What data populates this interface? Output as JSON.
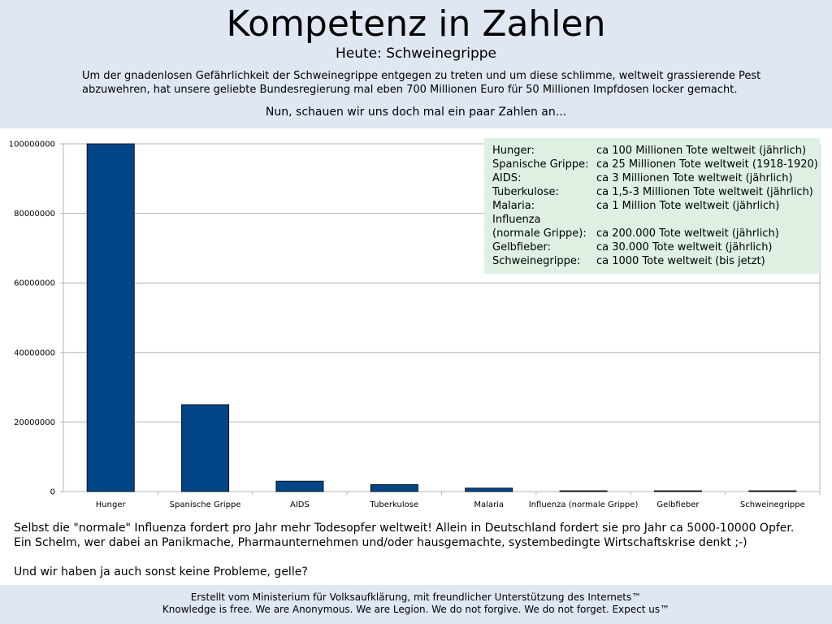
{
  "header": {
    "title": "Kompetenz in Zahlen",
    "subtitle": "Heute: Schweinegrippe",
    "intro": "Um der gnadenlosen Gefährlichkeit der Schweinegrippe entgegen zu treten und um diese schlimme, weltweit grassierende Pest abzuwehren, hat unsere geliebte Bundesregierung mal eben 700 Millionen Euro für 50 Millionen Impfdosen locker gemacht.",
    "lead": "Nun, schauen wir uns doch mal ein paar Zahlen an..."
  },
  "chart_data": {
    "type": "bar",
    "categories": [
      "Hunger",
      "Spanische Grippe",
      "AIDS",
      "Tuberkulose",
      "Malaria",
      "Influenza (normale Grippe)",
      "Gelbfieber",
      "Schweinegrippe"
    ],
    "values": [
      100000000,
      25000000,
      3000000,
      2000000,
      1000000,
      200000,
      30000,
      1000
    ],
    "ylim": [
      0,
      100000000
    ],
    "yticks": [
      "0",
      "20000000",
      "40000000",
      "60000000",
      "80000000",
      "100000000"
    ],
    "grid": true,
    "bar_color": "#004586",
    "title": "",
    "xlabel": "",
    "ylabel": ""
  },
  "infobox": {
    "rows": [
      {
        "label": "Hunger:",
        "value": "ca 100 Millionen Tote weltweit (jährlich)"
      },
      {
        "label": "Spanische Grippe:",
        "value": "ca 25 Millionen Tote weltweit (1918-1920)"
      },
      {
        "label": "AIDS:",
        "value": "ca 3 Millionen Tote weltweit (jährlich)"
      },
      {
        "label": "Tuberkulose:",
        "value": "ca 1,5-3 Millionen Tote weltweit (jährlich)"
      },
      {
        "label": "Malaria:",
        "value": "ca 1 Million Tote weltweit (jährlich)"
      },
      {
        "label": "Influenza",
        "value": ""
      },
      {
        "label": "(normale Grippe):",
        "value": "ca 200.000 Tote weltweit (jährlich)"
      },
      {
        "label": "Gelbfieber:",
        "value": "ca 30.000 Tote weltweit (jährlich)"
      },
      {
        "label": "Schweinegrippe:",
        "value": "ca 1000 Tote weltweit (bis jetzt)"
      }
    ]
  },
  "bottom": {
    "line1": "Selbst die \"normale\" Influenza fordert pro Jahr mehr Todesopfer weltweit! Allein in Deutschland fordert sie pro Jahr ca 5000-10000 Opfer.",
    "line2": "Ein Schelm, wer dabei an Panikmache, Pharmaunternehmen und/oder hausgemachte, systembedingte Wirtschaftskrise denkt ;-)",
    "closing": "Und wir haben ja auch sonst keine Probleme, gelle?"
  },
  "footer": {
    "line1": "Erstellt vom Ministerium für Volksaufklärung, mit freundlicher Unterstützung des Internets™",
    "line2": "Knowledge is free. We are Anonymous. We are Legion. We do not forgive. We do not forget. Expect us™"
  }
}
